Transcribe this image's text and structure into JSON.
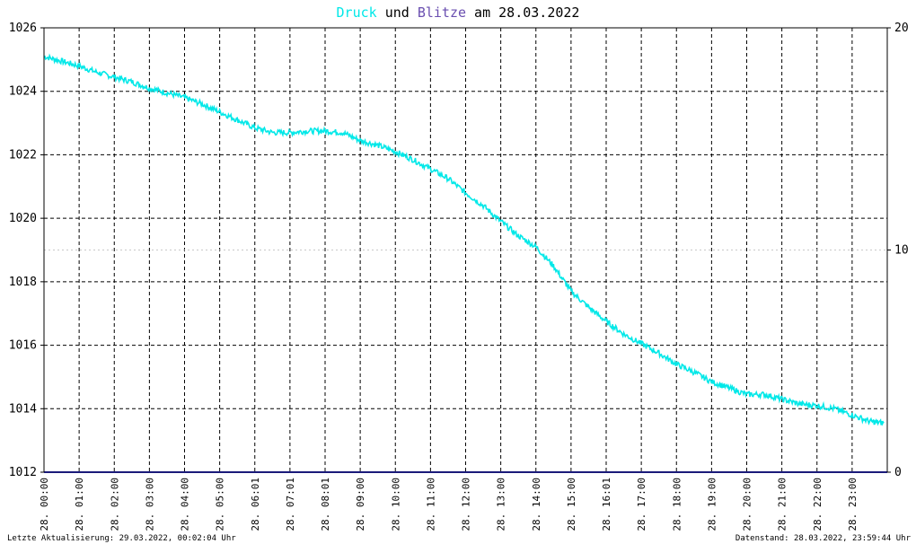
{
  "title": {
    "part1": "Druck",
    "part2": " und ",
    "part3": "Blitze",
    "part4": " am 28.03.2022"
  },
  "footer": {
    "left": "Letzte Aktualisierung: 29.03.2022, 00:02:04 Uhr",
    "right": "Datenstand: 28.03.2022, 23:59:44 Uhr"
  },
  "colors": {
    "druck": "#00e8e8",
    "blitze": "#6a4fb0",
    "baseline": "#1a1a7a",
    "axis": "#000000",
    "grid": "#000000"
  },
  "chart_data": {
    "type": "line",
    "title": "Druck und Blitze am 28.03.2022",
    "x_tick_labels": [
      "28. 00:00",
      "28. 01:00",
      "28. 02:00",
      "28. 03:00",
      "28. 04:00",
      "28. 05:00",
      "28. 06:01",
      "28. 07:01",
      "28. 08:01",
      "28. 09:00",
      "28. 10:00",
      "28. 11:00",
      "28. 12:00",
      "28. 13:00",
      "28. 14:00",
      "28. 15:00",
      "28. 16:01",
      "28. 17:00",
      "28. 18:00",
      "28. 19:00",
      "28. 20:00",
      "28. 21:00",
      "28. 22:00",
      "28. 23:00"
    ],
    "x_range_hours": [
      0,
      24
    ],
    "y_left": {
      "range": [
        1012,
        1026
      ],
      "ticks": [
        "1012",
        "1014",
        "1016",
        "1018",
        "1020",
        "1022",
        "1024",
        "1026"
      ]
    },
    "y_right": {
      "range": [
        0,
        20
      ],
      "ticks": [
        "0",
        "10",
        "20"
      ]
    },
    "grid": true,
    "series": [
      {
        "name": "Druck",
        "axis": "left",
        "x_hours": [
          0,
          0.5,
          1,
          1.5,
          2,
          2.5,
          3,
          3.5,
          4,
          4.5,
          5,
          5.5,
          6,
          6.5,
          7,
          7.5,
          8,
          8.5,
          9,
          9.5,
          10,
          10.5,
          11,
          11.5,
          12,
          12.5,
          13,
          13.5,
          14,
          14.5,
          15,
          15.5,
          16,
          16.5,
          17,
          17.5,
          18,
          18.5,
          19,
          19.5,
          20,
          20.5,
          21,
          21.5,
          22,
          22.5,
          23,
          23.5,
          23.9
        ],
        "values": [
          1025.1,
          1024.95,
          1024.8,
          1024.6,
          1024.45,
          1024.3,
          1024.1,
          1023.95,
          1023.8,
          1023.6,
          1023.35,
          1023.1,
          1022.85,
          1022.7,
          1022.7,
          1022.75,
          1022.75,
          1022.7,
          1022.45,
          1022.3,
          1022.1,
          1021.85,
          1021.55,
          1021.25,
          1020.8,
          1020.4,
          1019.9,
          1019.45,
          1019.1,
          1018.5,
          1017.7,
          1017.2,
          1016.75,
          1016.35,
          1016.05,
          1015.75,
          1015.4,
          1015.15,
          1014.85,
          1014.65,
          1014.45,
          1014.45,
          1014.3,
          1014.15,
          1014.1,
          1014.0,
          1013.8,
          1013.6,
          1013.55
        ]
      },
      {
        "name": "Blitze",
        "axis": "right",
        "x_hours": [
          0,
          24
        ],
        "values": [
          0,
          0
        ]
      }
    ]
  }
}
